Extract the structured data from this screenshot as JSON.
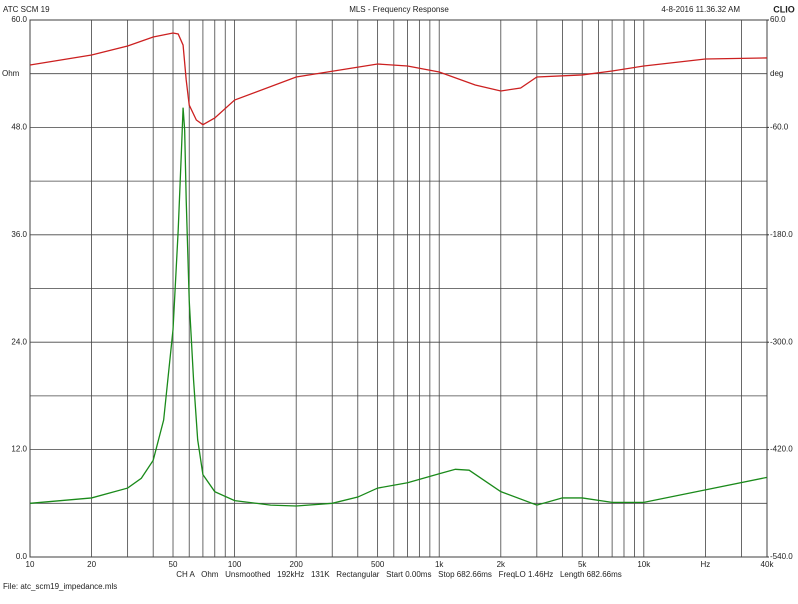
{
  "chart_data": {
    "type": "line",
    "title": "MLS - Frequency Response",
    "header_left": "ATC SCM 19",
    "header_right": "4-8-2016 11.36.32 AM",
    "logo": "CLIO",
    "y_label": "Ohm",
    "y2_label": "deg",
    "footer": "CH A   Ohm   Unsmoothed   192kHz   131K   Rectangular   Start 0.00ms   Stop 682.66ms   FreqLO 1.46Hz   Length 682.66ms",
    "file": "File: atc_scm19_impedance.mls",
    "xscale": "log",
    "xlim": [
      10,
      40000
    ],
    "xticks": [
      10,
      20,
      50,
      100,
      200,
      500,
      {
        "value": 1000,
        "label": "1k"
      },
      {
        "value": 2000,
        "label": "2k"
      },
      {
        "value": 5000,
        "label": "5k"
      },
      {
        "value": 10000,
        "label": "10k"
      },
      {
        "value": 20000,
        "label": "Hz"
      },
      {
        "value": 40000,
        "label": "40k"
      }
    ],
    "xminor": [
      30,
      40,
      60,
      70,
      80,
      90,
      300,
      400,
      600,
      700,
      800,
      900,
      3000,
      4000,
      6000,
      7000,
      8000,
      9000,
      30000
    ],
    "ylim": [
      0,
      60
    ],
    "yticks": [
      {
        "value": 0,
        "label": "0.0"
      },
      {
        "value": 12,
        "label": "12.0"
      },
      {
        "value": 24,
        "label": "24.0"
      },
      {
        "value": 36,
        "label": "36.0"
      },
      {
        "value": 48,
        "label": "48.0"
      },
      {
        "value": 60,
        "label": "60.0"
      }
    ],
    "yminor": [
      6,
      18,
      30,
      42,
      54
    ],
    "y2lim": [
      -540,
      60
    ],
    "y2ticks": [
      {
        "value": -540,
        "label": "-540.0"
      },
      {
        "value": -420,
        "label": "-420.0"
      },
      {
        "value": -300,
        "label": "-300.0"
      },
      {
        "value": -180,
        "label": "-180.0"
      },
      {
        "value": -60,
        "label": "-60.0"
      },
      {
        "value": 60,
        "label": "60.0"
      }
    ],
    "grid": true,
    "series": [
      {
        "color": "#1a8a1a",
        "x": [
          10,
          20,
          30,
          35,
          40,
          45,
          50,
          53,
          55,
          56,
          57,
          58,
          60,
          63,
          66,
          70,
          80,
          100,
          150,
          200,
          300,
          400,
          500,
          700,
          1000,
          1200,
          1400,
          2000,
          3000,
          4000,
          5000,
          7000,
          10000,
          20000,
          40000
        ],
        "values": [
          6.0,
          6.6,
          7.7,
          8.8,
          10.8,
          15.3,
          25.4,
          36.5,
          45.5,
          50.2,
          47.7,
          39.9,
          28.7,
          19.8,
          13.1,
          9.2,
          7.3,
          6.3,
          5.8,
          5.7,
          6.0,
          6.7,
          7.7,
          8.3,
          9.3,
          9.8,
          9.7,
          7.3,
          5.8,
          6.6,
          6.6,
          6.1,
          6.1,
          7.5,
          8.9
        ]
      },
      {
        "color": "#cc2020",
        "axis": "y2",
        "x": [
          10,
          20,
          30,
          40,
          50,
          53,
          56,
          58,
          60,
          65,
          70,
          80,
          100,
          200,
          500,
          700,
          1000,
          1500,
          2000,
          2500,
          3000,
          5000,
          7000,
          10000,
          20000,
          40000
        ],
        "values": [
          9.7,
          20.9,
          31,
          41,
          45.5,
          44.4,
          32,
          -7,
          -35,
          -51.7,
          -57,
          -49.5,
          -29.4,
          -3.7,
          10.8,
          8.6,
          1.9,
          -12.6,
          -19.3,
          -16,
          -3.7,
          -1.4,
          3,
          8.6,
          16.4,
          17.6
        ]
      }
    ]
  }
}
